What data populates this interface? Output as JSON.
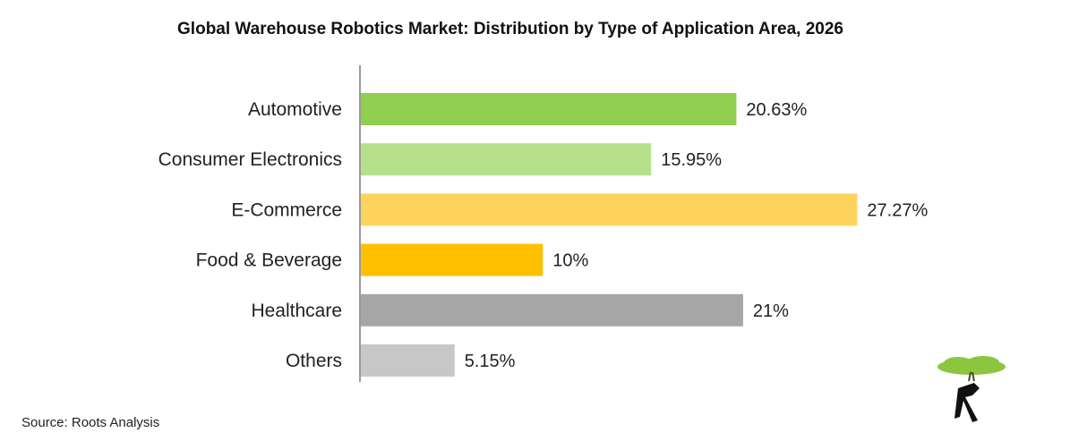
{
  "chart_data": {
    "type": "bar",
    "orientation": "horizontal",
    "title": "Global Warehouse Robotics Market: Distribution by Type of Application Area, 2026",
    "categories": [
      "Automotive",
      "Consumer Electronics",
      "E-Commerce",
      "Food & Beverage",
      "Healthcare",
      "Others"
    ],
    "values": [
      20.63,
      15.95,
      27.27,
      10,
      21,
      5.15
    ],
    "value_labels": [
      "20.63%",
      "15.95%",
      "27.27%",
      "10%",
      "21%",
      "5.15%"
    ],
    "colors": [
      "#8fce4f",
      "#b6e08c",
      "#ffd45c",
      "#ffc000",
      "#a6a6a6",
      "#c7c7c7"
    ],
    "xlabel": "",
    "ylabel": "",
    "xlim": [
      0,
      28
    ],
    "grid": false,
    "legend": "none"
  },
  "footer": {
    "source": "Source: Roots Analysis"
  },
  "logo": {
    "icon": "tree-r-logo-icon",
    "foliage_color": "#8cc63f"
  }
}
